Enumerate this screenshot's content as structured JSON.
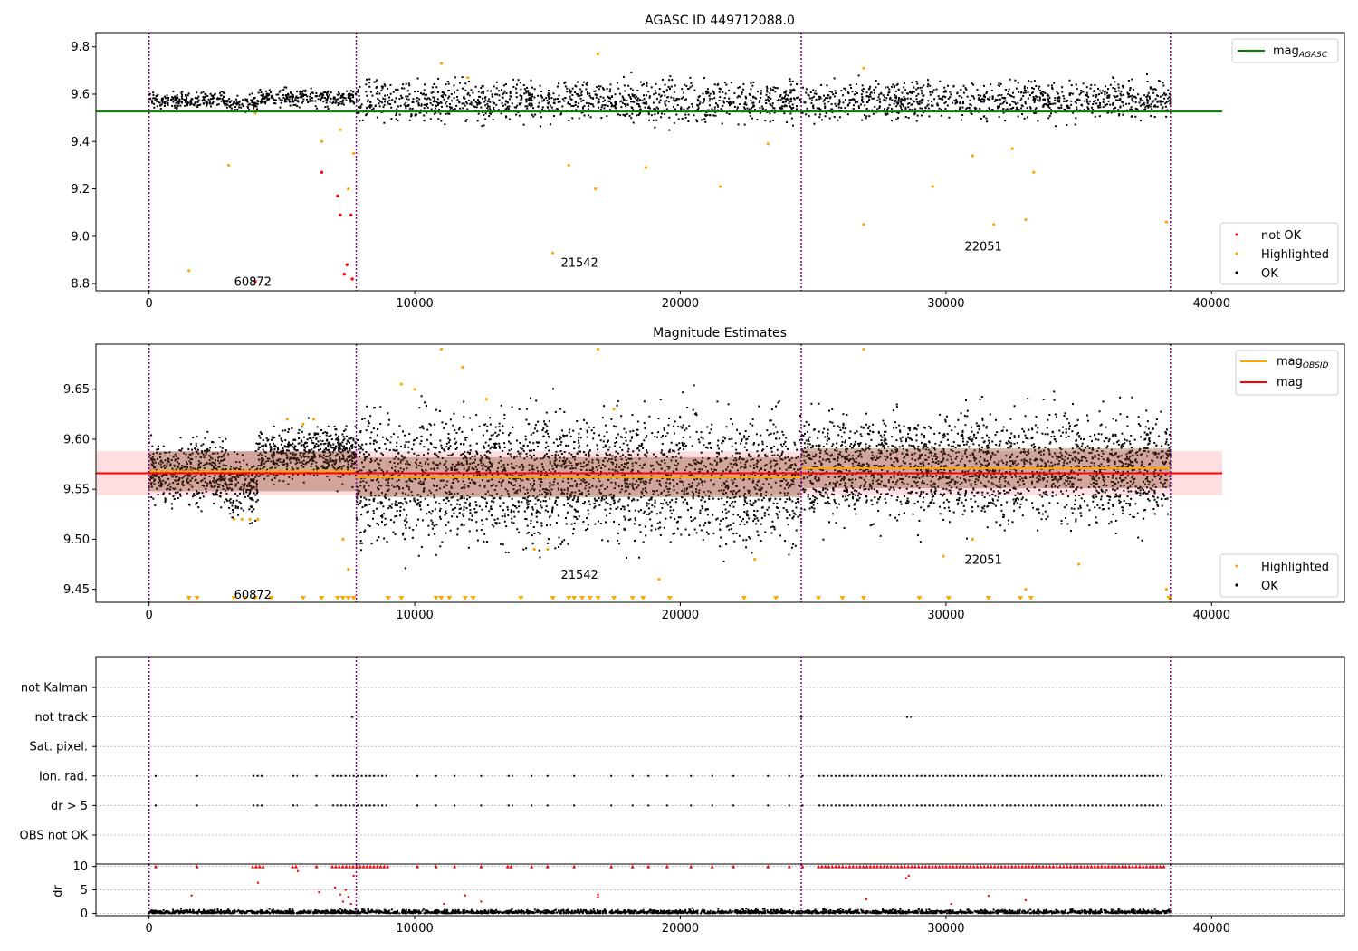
{
  "chart_data": [
    {
      "type": "scatter",
      "title": "AGASC ID 449712088.0",
      "xlim": [
        -2000,
        45000
      ],
      "ylim": [
        8.77,
        9.86
      ],
      "xticks": [
        0,
        10000,
        20000,
        30000,
        40000
      ],
      "yticks": [
        8.8,
        9.0,
        9.2,
        9.4,
        9.6,
        9.8
      ],
      "ytick_labels": [
        "8.8",
        "9.0",
        "9.2",
        "9.4",
        "9.6",
        "9.8"
      ],
      "xtick_labels": [
        "0",
        "10000",
        "20000",
        "30000",
        "40000"
      ],
      "obs_boundaries": [
        0,
        7800,
        24550,
        38450
      ],
      "obs_labels": [
        {
          "text": "60872",
          "x": 3200,
          "y": 8.81
        },
        {
          "text": "21542",
          "x": 15500,
          "y": 8.89
        },
        {
          "text": "22051",
          "x": 30700,
          "y": 8.96
        }
      ],
      "reference_line": {
        "name": "mag_AGASC",
        "value": 9.527,
        "x_range": [
          -2000,
          40400
        ],
        "color": "#008000"
      },
      "ok_bands": [
        {
          "x0": 0,
          "x1": 3000,
          "center": 9.575,
          "spread": 0.035
        },
        {
          "x0": 3000,
          "x1": 4100,
          "center": 9.56,
          "spread": 0.03
        },
        {
          "x0": 4100,
          "x1": 7800,
          "center": 9.585,
          "spread": 0.035
        },
        {
          "x0": 7800,
          "x1": 24550,
          "center": 9.57,
          "spread": 0.08
        },
        {
          "x0": 24550,
          "x1": 38450,
          "center": 9.575,
          "spread": 0.075
        }
      ],
      "highlighted_sample": [
        [
          1500,
          8.855
        ],
        [
          3000,
          9.3
        ],
        [
          4000,
          9.52
        ],
        [
          6500,
          9.4
        ],
        [
          7200,
          9.45
        ],
        [
          7500,
          9.2
        ],
        [
          7700,
          9.35
        ],
        [
          11000,
          9.73
        ],
        [
          12000,
          9.67
        ],
        [
          15200,
          8.93
        ],
        [
          15800,
          9.3
        ],
        [
          16900,
          9.77
        ],
        [
          16800,
          9.2
        ],
        [
          18700,
          9.29
        ],
        [
          21500,
          9.21
        ],
        [
          23300,
          9.39
        ],
        [
          26900,
          9.71
        ],
        [
          26900,
          9.05
        ],
        [
          29500,
          9.21
        ],
        [
          31000,
          9.34
        ],
        [
          31800,
          9.05
        ],
        [
          32500,
          9.37
        ],
        [
          33000,
          9.07
        ],
        [
          33300,
          9.27
        ],
        [
          38300,
          9.06
        ]
      ],
      "notok_sample": [
        [
          4000,
          8.81
        ],
        [
          6500,
          9.27
        ],
        [
          7100,
          9.17
        ],
        [
          7200,
          9.09
        ],
        [
          7350,
          8.84
        ],
        [
          7450,
          8.88
        ],
        [
          7600,
          9.09
        ],
        [
          7650,
          8.82
        ]
      ],
      "legend": {
        "location": "lower-right",
        "entries": [
          "not OK",
          "Highlighted",
          "OK"
        ],
        "line_entry": "mag",
        "line_entry_sub": "AGASC"
      },
      "colors": {
        "ok": "#000000",
        "highlighted": "#ffa500",
        "not_ok": "#ff0000",
        "boundary": "#800080"
      }
    },
    {
      "type": "scatter",
      "title": "Magnitude Estimates",
      "xlim": [
        -2000,
        45000
      ],
      "ylim": [
        9.437,
        9.695
      ],
      "xticks": [
        0,
        10000,
        20000,
        30000,
        40000
      ],
      "yticks": [
        9.45,
        9.5,
        9.55,
        9.6,
        9.65
      ],
      "ytick_labels": [
        "9.45",
        "9.50",
        "9.55",
        "9.60",
        "9.65"
      ],
      "xtick_labels": [
        "0",
        "10000",
        "20000",
        "30000",
        "40000"
      ],
      "obs_boundaries": [
        0,
        7800,
        24550,
        38450
      ],
      "obs_labels": [
        {
          "text": "60872",
          "x": 3200,
          "y": 9.445
        },
        {
          "text": "21542",
          "x": 15500,
          "y": 9.465
        },
        {
          "text": "22051",
          "x": 30700,
          "y": 9.48
        }
      ],
      "mag_line": {
        "name": "mag",
        "value": 9.566,
        "band": [
          9.544,
          9.588
        ],
        "x_range": [
          -2000,
          40400
        ],
        "color": "#ff0000"
      },
      "mag_obsid_segments": [
        {
          "x0": 0,
          "x1": 7800,
          "value": 9.568
        },
        {
          "x0": 7800,
          "x1": 24550,
          "value": 9.562
        },
        {
          "x0": 24550,
          "x1": 38450,
          "value": 9.571
        }
      ],
      "ok_bands": [
        {
          "x0": 0,
          "x1": 3000,
          "center": 9.567,
          "spread": 0.03
        },
        {
          "x0": 3000,
          "x1": 4100,
          "center": 9.555,
          "spread": 0.03
        },
        {
          "x0": 4100,
          "x1": 7800,
          "center": 9.585,
          "spread": 0.025
        },
        {
          "x0": 7800,
          "x1": 24550,
          "center": 9.562,
          "spread": 0.06
        },
        {
          "x0": 24550,
          "x1": 38450,
          "center": 9.571,
          "spread": 0.05
        }
      ],
      "highlighted_sample": [
        [
          3200,
          9.52
        ],
        [
          3500,
          9.52
        ],
        [
          3800,
          9.52
        ],
        [
          4100,
          9.52
        ],
        [
          5200,
          9.62
        ],
        [
          5800,
          9.615
        ],
        [
          6200,
          9.62
        ],
        [
          7300,
          9.5
        ],
        [
          7500,
          9.47
        ],
        [
          9500,
          9.655
        ],
        [
          10000,
          9.65
        ],
        [
          11000,
          9.69
        ],
        [
          11800,
          9.672
        ],
        [
          12700,
          9.64
        ],
        [
          14500,
          9.49
        ],
        [
          15000,
          9.49
        ],
        [
          16900,
          9.69
        ],
        [
          17500,
          9.63
        ],
        [
          19200,
          9.46
        ],
        [
          22800,
          9.48
        ],
        [
          26900,
          9.69
        ],
        [
          29900,
          9.483
        ],
        [
          31000,
          9.5
        ],
        [
          33000,
          9.45
        ],
        [
          35000,
          9.475
        ],
        [
          38300,
          9.45
        ]
      ],
      "floor_markers_x": [
        1500,
        1800,
        3200,
        3600,
        4000,
        4600,
        5800,
        6500,
        7100,
        7300,
        7500,
        7700,
        9000,
        9500,
        10800,
        11000,
        11300,
        11900,
        12200,
        14000,
        15200,
        15800,
        16000,
        16300,
        16600,
        16900,
        17500,
        18200,
        18600,
        19600,
        22400,
        23600,
        25200,
        26100,
        26900,
        29000,
        30100,
        31600,
        32800,
        33200,
        38400
      ],
      "legend_lines": {
        "location": "top-right",
        "entries": [
          "mag",
          "mag"
        ],
        "first_sub": "OBSID"
      },
      "legend_points": {
        "location": "lower-right",
        "entries": [
          "Highlighted",
          "OK"
        ]
      },
      "colors": {
        "ok": "#000000",
        "highlighted": "#ffa500",
        "mag": "#ff0000",
        "mag_obsid": "#ffa500",
        "band": "#ffd6da",
        "boundary": "#800080"
      }
    },
    {
      "type": "scatter",
      "title": "",
      "xlim": [
        -2000,
        45000
      ],
      "xticks": [
        0,
        10000,
        20000,
        30000,
        40000
      ],
      "xtick_labels": [
        "0",
        "10000",
        "20000",
        "30000",
        "40000"
      ],
      "flag_rows": [
        "not Kalman",
        "not track",
        "Sat. pixel.",
        "Ion. rad.",
        "dr > 5",
        "OBS not OK"
      ],
      "dr_axis": {
        "ylabel": "dr",
        "ylim": [
          -0.5,
          10.5
        ],
        "yticks": [
          0,
          5,
          10
        ],
        "ytick_labels": [
          "0",
          "5",
          "10"
        ],
        "clip_value": 10
      },
      "obs_boundaries": [
        0,
        7800,
        24550,
        38450
      ],
      "flag_events": {
        "Ion. rad.": [
          [
            250,
            250
          ],
          [
            1800,
            1800
          ],
          [
            3900,
            4300
          ],
          [
            5400,
            5600
          ],
          [
            6300,
            6300
          ],
          [
            6900,
            9000
          ],
          [
            10100,
            10100
          ],
          [
            10800,
            10800
          ],
          [
            11500,
            11500
          ],
          [
            12500,
            12500
          ],
          [
            13500,
            13700
          ],
          [
            14400,
            14400
          ],
          [
            15000,
            15000
          ],
          [
            16000,
            16000
          ],
          [
            17400,
            17400
          ],
          [
            18200,
            18200
          ],
          [
            18800,
            18800
          ],
          [
            19500,
            19500
          ],
          [
            20400,
            20400
          ],
          [
            21200,
            21300
          ],
          [
            22000,
            22000
          ],
          [
            23300,
            23300
          ],
          [
            24100,
            24100
          ],
          [
            24600,
            24600
          ],
          [
            25200,
            38200
          ]
        ],
        "dr > 5": [
          [
            250,
            250
          ],
          [
            1800,
            1800
          ],
          [
            3900,
            4300
          ],
          [
            5400,
            5600
          ],
          [
            6300,
            6300
          ],
          [
            6900,
            9000
          ],
          [
            10100,
            10100
          ],
          [
            10800,
            10800
          ],
          [
            11500,
            11500
          ],
          [
            12500,
            12500
          ],
          [
            13500,
            13700
          ],
          [
            14400,
            14400
          ],
          [
            15000,
            15000
          ],
          [
            16000,
            16000
          ],
          [
            17400,
            17400
          ],
          [
            18200,
            18200
          ],
          [
            18800,
            18800
          ],
          [
            19500,
            19500
          ],
          [
            20400,
            20400
          ],
          [
            21200,
            21300
          ],
          [
            22000,
            22000
          ],
          [
            23300,
            23300
          ],
          [
            24100,
            24100
          ],
          [
            24600,
            24600
          ],
          [
            25200,
            38200
          ]
        ],
        "not track": [
          [
            7650,
            7700
          ],
          [
            24550,
            24550
          ],
          [
            28500,
            28700
          ]
        ]
      },
      "dr_outliers": [
        [
          1600,
          3.8
        ],
        [
          4100,
          6.5
        ],
        [
          5600,
          9.0
        ],
        [
          6400,
          4.5
        ],
        [
          7000,
          5.5
        ],
        [
          7200,
          4.0
        ],
        [
          7300,
          2.5
        ],
        [
          7400,
          5.0
        ],
        [
          7500,
          3.5
        ],
        [
          7600,
          2.0
        ],
        [
          7700,
          8.0
        ],
        [
          11100,
          2.0
        ],
        [
          11900,
          3.8
        ],
        [
          12500,
          2.5
        ],
        [
          16900,
          3.5
        ],
        [
          16900,
          4.0
        ],
        [
          27000,
          3.0
        ],
        [
          28500,
          7.5
        ],
        [
          28600,
          8.0
        ],
        [
          30200,
          2.0
        ],
        [
          31600,
          3.7
        ],
        [
          33000,
          2.8
        ]
      ],
      "colors": {
        "ok": "#000000",
        "dr_clipped": "#ff0000",
        "boundary": "#800080",
        "grid": "#b0b0b0"
      }
    }
  ]
}
